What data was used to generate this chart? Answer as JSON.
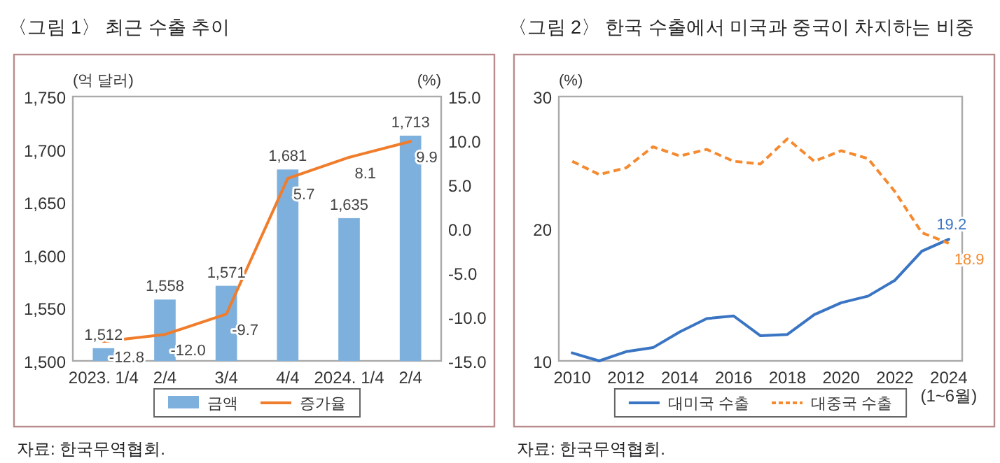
{
  "chart_data": [
    {
      "type": "bar",
      "title": "〈그림 1〉 최근 수출 추이",
      "ylabel": "(억 달러)",
      "y2label": "(%)",
      "categories": [
        "2023. 1/4",
        "2/4",
        "3/4",
        "4/4",
        "2024. 1/4",
        "2/4"
      ],
      "series": [
        {
          "name": "금액",
          "color": "#7eb0de",
          "values": [
            1512,
            1558,
            1571,
            1681,
            1635,
            1713
          ],
          "value_labels": [
            "1,512",
            "1,558",
            "1,571",
            "1,681",
            "1,635",
            "1,713"
          ]
        },
        {
          "name": "증가율",
          "type": "line",
          "axis": "y2",
          "color": "#f07d2c",
          "values": [
            -12.8,
            -12.0,
            -9.7,
            5.7,
            8.1,
            9.9
          ],
          "value_labels": [
            "-12.8",
            "-12.0",
            "-9.7",
            "5.7",
            "8.1",
            "9.9"
          ]
        }
      ],
      "ylim": [
        1500,
        1750
      ],
      "yticks": [
        {
          "value": 1500,
          "label": "1,500"
        },
        {
          "value": 1550,
          "label": "1,550"
        },
        {
          "value": 1600,
          "label": "1,600"
        },
        {
          "value": 1650,
          "label": "1,650"
        },
        {
          "value": 1700,
          "label": "1,700"
        },
        {
          "value": 1750,
          "label": "1,750"
        }
      ],
      "y2lim": [
        -15,
        15
      ],
      "y2ticks": [
        {
          "value": -15,
          "label": "-15.0"
        },
        {
          "value": -10,
          "label": "-10.0"
        },
        {
          "value": -5,
          "label": "-5.0"
        },
        {
          "value": 0,
          "label": "0.0"
        },
        {
          "value": 5,
          "label": "5.0"
        },
        {
          "value": 10,
          "label": "10.0"
        },
        {
          "value": 15,
          "label": "15.0"
        }
      ],
      "legend": "bottom",
      "annotations": [
        "자료: 한국무역협회."
      ]
    },
    {
      "type": "line",
      "title": "〈그림 2〉 한국 수출에서 미국과 중국이 차지하는 비중",
      "ylabel": "(%)",
      "categories": [
        "2010",
        null,
        "2012",
        null,
        "2014",
        null,
        "2016",
        null,
        "2018",
        null,
        "2020",
        null,
        "2022",
        null,
        "2024\n(1~6월)"
      ],
      "series": [
        {
          "name": "대미국 수출",
          "color": "#3a75c4",
          "line_style": "solid",
          "values": [
            10.6,
            10.0,
            10.7,
            11.0,
            12.2,
            13.2,
            13.4,
            11.9,
            12.0,
            13.5,
            14.4,
            14.9,
            16.1,
            18.3,
            19.2
          ],
          "value_labels": [
            null,
            null,
            null,
            null,
            null,
            null,
            null,
            null,
            null,
            null,
            null,
            null,
            null,
            null,
            "19.2"
          ]
        },
        {
          "name": "대중국 수출",
          "color": "#f58a2f",
          "line_style": "dashed",
          "values": [
            25.1,
            24.1,
            24.6,
            26.2,
            25.5,
            26.0,
            25.1,
            24.9,
            26.8,
            25.1,
            25.9,
            25.3,
            22.8,
            19.7,
            18.9
          ],
          "value_labels": [
            null,
            null,
            null,
            null,
            null,
            null,
            null,
            null,
            null,
            null,
            null,
            null,
            null,
            null,
            "18.9"
          ]
        }
      ],
      "ylim": [
        10,
        30
      ],
      "yticks": [
        10,
        20,
        30
      ],
      "legend": "bottom",
      "annotations": [
        "자료: 한국무역협회."
      ]
    }
  ]
}
